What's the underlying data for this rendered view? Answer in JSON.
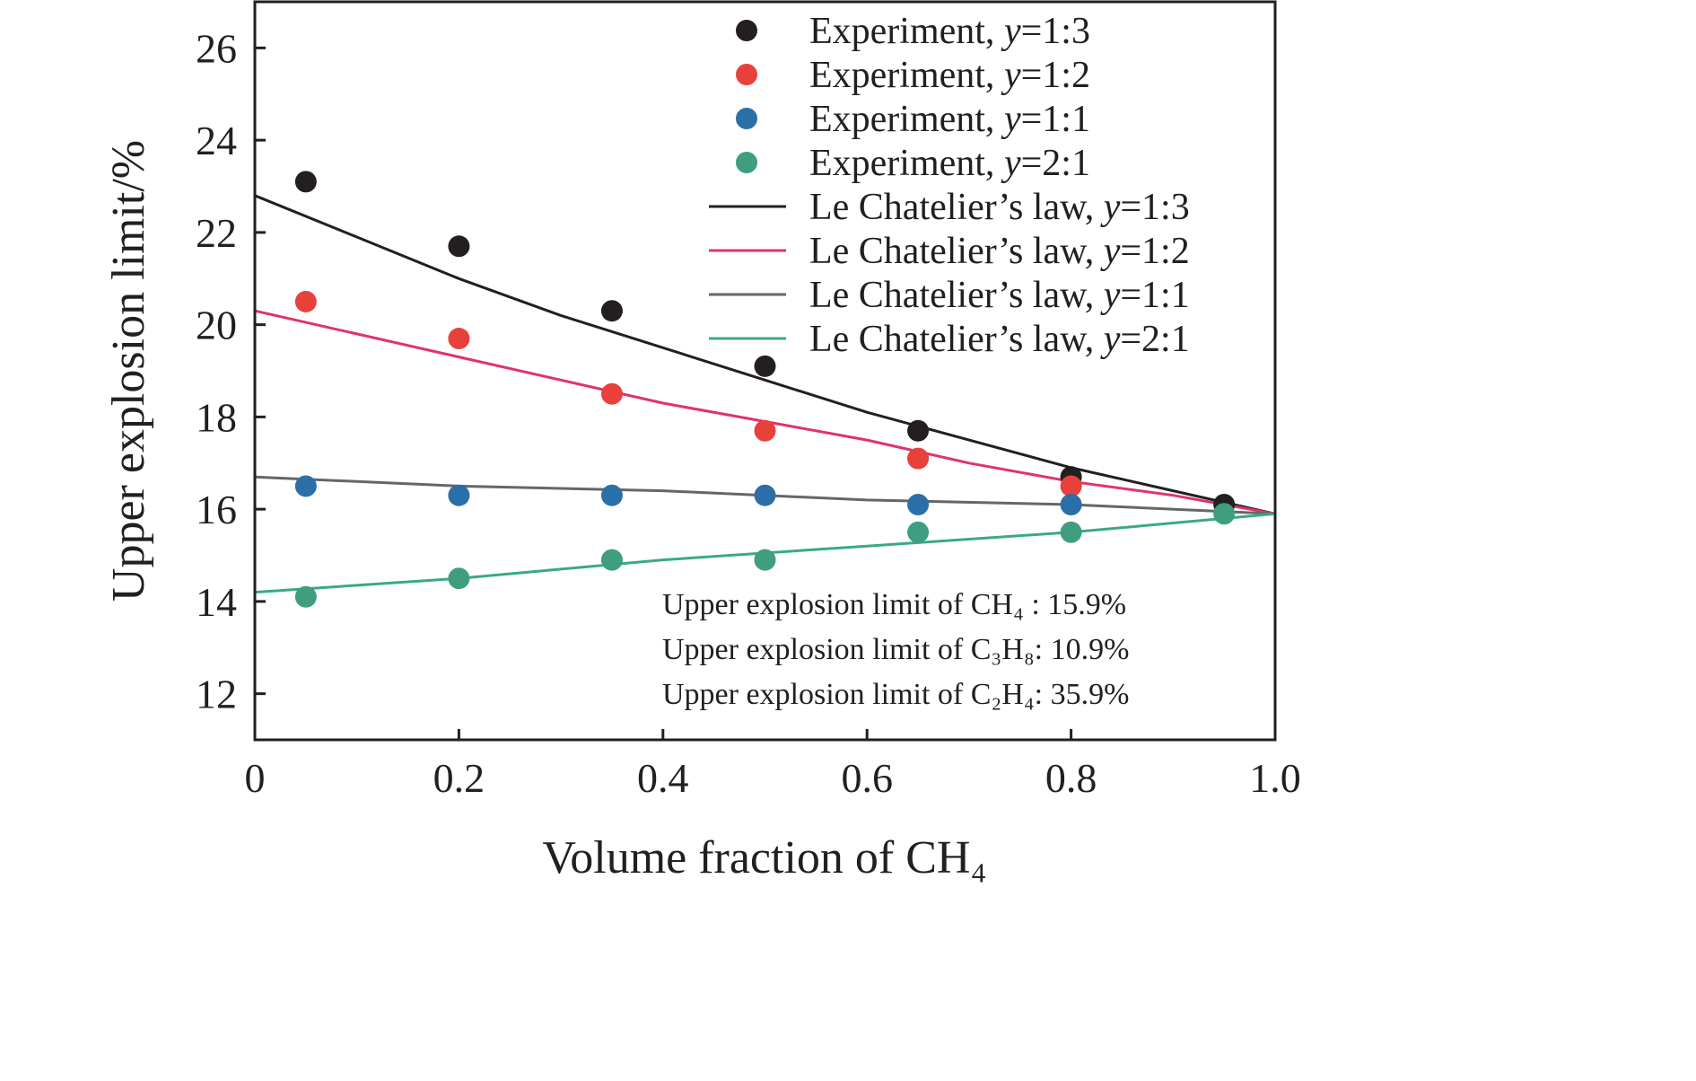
{
  "chart_data": {
    "type": "scatter",
    "xlabel": "Volume fraction of CH₄",
    "ylabel": "Upper explosion limit/%",
    "xlim": [
      0,
      1.0
    ],
    "ylim": [
      11,
      27
    ],
    "x_ticks": [
      0,
      0.2,
      0.4,
      0.6,
      0.8,
      1.0
    ],
    "x_tick_labels": [
      "0",
      "0.2",
      "0.4",
      "0.6",
      "0.8",
      "1.0"
    ],
    "y_ticks": [
      12,
      14,
      16,
      18,
      20,
      22,
      24,
      26
    ],
    "y_tick_labels": [
      "12",
      "14",
      "16",
      "18",
      "20",
      "22",
      "24",
      "26"
    ],
    "grid": false,
    "legend_position": "top-right",
    "series": [
      {
        "name": "Experiment, y=1:3",
        "label_prefix": "Experiment, ",
        "ratio": "1:3",
        "kind": "scatter",
        "color": "#231f20",
        "x": [
          0.05,
          0.2,
          0.35,
          0.5,
          0.65,
          0.8,
          0.95
        ],
        "y": [
          23.1,
          21.7,
          20.3,
          19.1,
          17.7,
          16.7,
          16.1
        ]
      },
      {
        "name": "Experiment, y=1:2",
        "label_prefix": "Experiment, ",
        "ratio": "1:2",
        "kind": "scatter",
        "color": "#e8413c",
        "x": [
          0.05,
          0.2,
          0.35,
          0.5,
          0.65,
          0.8
        ],
        "y": [
          20.5,
          19.7,
          18.5,
          17.7,
          17.1,
          16.5
        ]
      },
      {
        "name": "Experiment, y=1:1",
        "label_prefix": "Experiment, ",
        "ratio": "1:1",
        "kind": "scatter",
        "color": "#2a6fa8",
        "x": [
          0.05,
          0.2,
          0.35,
          0.5,
          0.65,
          0.8
        ],
        "y": [
          16.5,
          16.3,
          16.3,
          16.3,
          16.1,
          16.1
        ]
      },
      {
        "name": "Experiment, y=2:1",
        "label_prefix": "Experiment, ",
        "ratio": "2:1",
        "kind": "scatter",
        "color": "#3e9e7f",
        "x": [
          0.05,
          0.2,
          0.35,
          0.5,
          0.65,
          0.8,
          0.95
        ],
        "y": [
          14.1,
          14.5,
          14.9,
          14.9,
          15.5,
          15.5,
          15.9
        ]
      },
      {
        "name": "Le Chatelier’s law, y=1:3",
        "label_prefix": "Le Chatelier’s law, ",
        "ratio": "1:3",
        "kind": "line",
        "color": "#231f20",
        "x": [
          0,
          0.1,
          0.2,
          0.3,
          0.4,
          0.5,
          0.6,
          0.7,
          0.8,
          0.9,
          1.0
        ],
        "y": [
          22.8,
          21.9,
          21.0,
          20.2,
          19.5,
          18.8,
          18.1,
          17.5,
          16.9,
          16.4,
          15.9
        ]
      },
      {
        "name": "Le Chatelier’s law, y=1:2",
        "label_prefix": "Le Chatelier’s law, ",
        "ratio": "1:2",
        "kind": "line",
        "color": "#e0336b",
        "x": [
          0,
          0.1,
          0.2,
          0.3,
          0.4,
          0.5,
          0.6,
          0.7,
          0.8,
          0.9,
          1.0
        ],
        "y": [
          20.3,
          19.8,
          19.3,
          18.8,
          18.3,
          17.9,
          17.5,
          17.0,
          16.6,
          16.3,
          15.9
        ]
      },
      {
        "name": "Le Chatelier’s law, y=1:1",
        "label_prefix": "Le Chatelier’s law, ",
        "ratio": "1:1",
        "kind": "line",
        "color": "#666666",
        "x": [
          0,
          0.2,
          0.4,
          0.6,
          0.8,
          1.0
        ],
        "y": [
          16.7,
          16.5,
          16.4,
          16.2,
          16.1,
          15.9
        ]
      },
      {
        "name": "Le Chatelier’s law, y=2:1",
        "label_prefix": "Le Chatelier’s law, ",
        "ratio": "2:1",
        "kind": "line",
        "color": "#3aa88a",
        "x": [
          0,
          0.2,
          0.4,
          0.6,
          0.8,
          1.0
        ],
        "y": [
          14.2,
          14.5,
          14.9,
          15.2,
          15.5,
          15.9
        ]
      }
    ],
    "annotations": [
      {
        "text": "Upper explosion limit of CH₄ : 15.9%"
      },
      {
        "text": "Upper explosion limit of C₃H₈: 10.9%"
      },
      {
        "text": "Upper explosion limit of C₂H₄: 35.9%"
      }
    ]
  }
}
